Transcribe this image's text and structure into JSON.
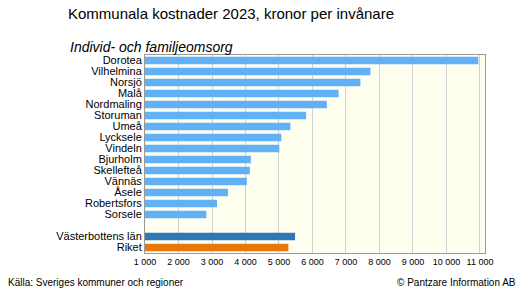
{
  "chart_data": {
    "type": "bar",
    "orientation": "horizontal",
    "title": "Kommunala kostnader 2023, kronor per invånare",
    "subtitle": "Individ- och familjeomsorg",
    "annotations": [
      "Källa: Sveriges kommuner och regioner",
      "© Pantzare Information AB"
    ],
    "categories": [
      "Dorotea",
      "Vilhelmina",
      "Norsjö",
      "Malå",
      "Nordmaling",
      "Storuman",
      "Umeå",
      "Lycksele",
      "Vindeln",
      "Bjurholm",
      "Skellefteå",
      "Vännäs",
      "Åsele",
      "Robertsfors",
      "Sorsele",
      null,
      "Västerbottens län",
      "Riket"
    ],
    "values": [
      10950,
      7730,
      7430,
      6780,
      6430,
      5810,
      5340,
      5070,
      5010,
      4160,
      4130,
      4040,
      3480,
      3150,
      2830,
      null,
      5480,
      5280
    ],
    "colors": [
      "#62b0f5",
      "#62b0f5",
      "#62b0f5",
      "#62b0f5",
      "#62b0f5",
      "#62b0f5",
      "#62b0f5",
      "#62b0f5",
      "#62b0f5",
      "#62b0f5",
      "#62b0f5",
      "#62b0f5",
      "#62b0f5",
      "#62b0f5",
      "#62b0f5",
      "#62b0f5",
      "#2f78b5",
      "#e8770e"
    ],
    "xlim": [
      1000,
      11150
    ],
    "xticks": [
      {
        "value": 1000,
        "label": "1 000"
      },
      {
        "value": 2000,
        "label": "2 000"
      },
      {
        "value": 3000,
        "label": "3 000"
      },
      {
        "value": 4000,
        "label": "4 000"
      },
      {
        "value": 5000,
        "label": "5 000"
      },
      {
        "value": 6000,
        "label": "6 000"
      },
      {
        "value": 7000,
        "label": "7 000"
      },
      {
        "value": 8000,
        "label": "8 000"
      },
      {
        "value": 9000,
        "label": "9 000"
      },
      {
        "value": 10000,
        "label": "10 000"
      },
      {
        "value": 11000,
        "label": "11 000"
      }
    ],
    "grid": true,
    "data_labels": false
  }
}
